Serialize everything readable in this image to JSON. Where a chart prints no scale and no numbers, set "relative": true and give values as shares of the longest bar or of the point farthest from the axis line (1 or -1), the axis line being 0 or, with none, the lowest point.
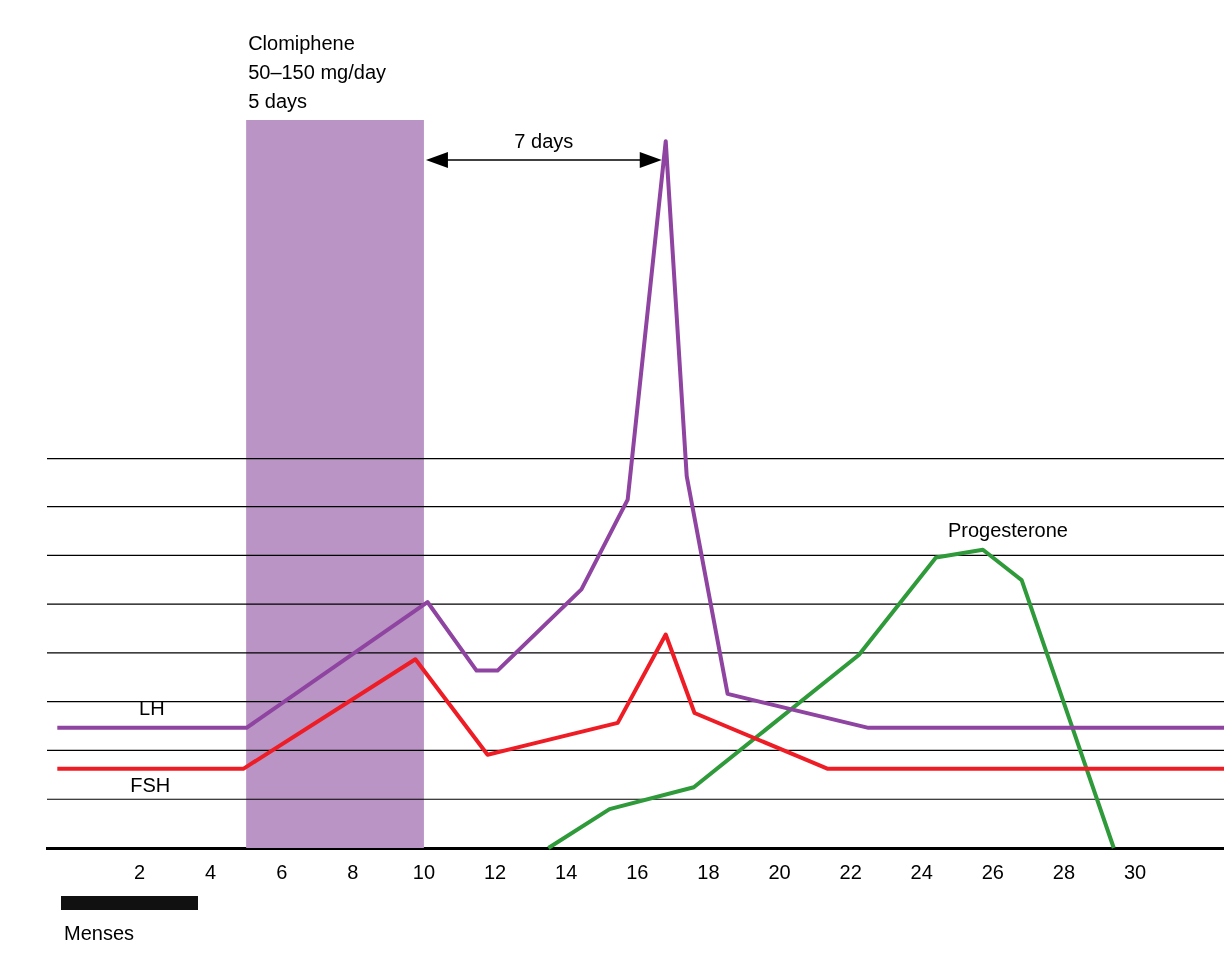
{
  "chart_data": {
    "type": "line",
    "relative": true,
    "annotations": [
      "7 days",
      "Menses"
    ],
    "xlim": [
      -0.6,
      32.5
    ],
    "xticks": [
      2,
      4,
      6,
      8,
      10,
      12,
      14,
      16,
      18,
      20,
      22,
      24,
      26,
      28,
      30
    ],
    "grid": false,
    "legend": false,
    "marker": "none",
    "line_style": "solid",
    "series": [
      {
        "name": "LH",
        "color": "#8e44a0",
        "x": [
          -0.31,
          5.01,
          10.1,
          11.48,
          12.07,
          14.43,
          15.73,
          16.8,
          17.39,
          18.54,
          22.5,
          32.5
        ],
        "values": [
          0.17,
          0.17,
          0.348,
          0.251,
          0.251,
          0.366,
          0.493,
          1.0,
          0.526,
          0.218,
          0.17,
          0.17
        ]
      },
      {
        "name": "FSH",
        "color": "#ee1c25",
        "x": [
          -0.31,
          4.92,
          9.76,
          11.79,
          15.45,
          16.8,
          17.61,
          21.36,
          32.5
        ],
        "values": [
          0.112,
          0.112,
          0.267,
          0.132,
          0.177,
          0.302,
          0.191,
          0.112,
          0.112
        ]
      },
      {
        "name": "Progesterone",
        "color": "#2e9a3a",
        "x": [
          13.5,
          15.22,
          17.59,
          22.23,
          24.4,
          25.72,
          26.81,
          29.4
        ],
        "values": [
          0,
          0.055,
          0.086,
          0.273,
          0.411,
          0.422,
          0.379,
          0
        ]
      }
    ],
    "bands": [
      {
        "axis": "x",
        "from": 5,
        "to": 10,
        "label": "Clomiphene\n50–150 mg/day\n5 days",
        "color": "#b994c4"
      }
    ],
    "ref_lines": [
      {
        "axis": "y",
        "value": 0.069
      },
      {
        "axis": "y",
        "value": 0.138
      },
      {
        "axis": "y",
        "value": 0.207
      },
      {
        "axis": "y",
        "value": 0.276
      },
      {
        "axis": "y",
        "value": 0.345
      },
      {
        "axis": "y",
        "value": 0.414
      },
      {
        "axis": "y",
        "value": 0.483
      },
      {
        "axis": "y",
        "value": 0.551
      }
    ]
  }
}
